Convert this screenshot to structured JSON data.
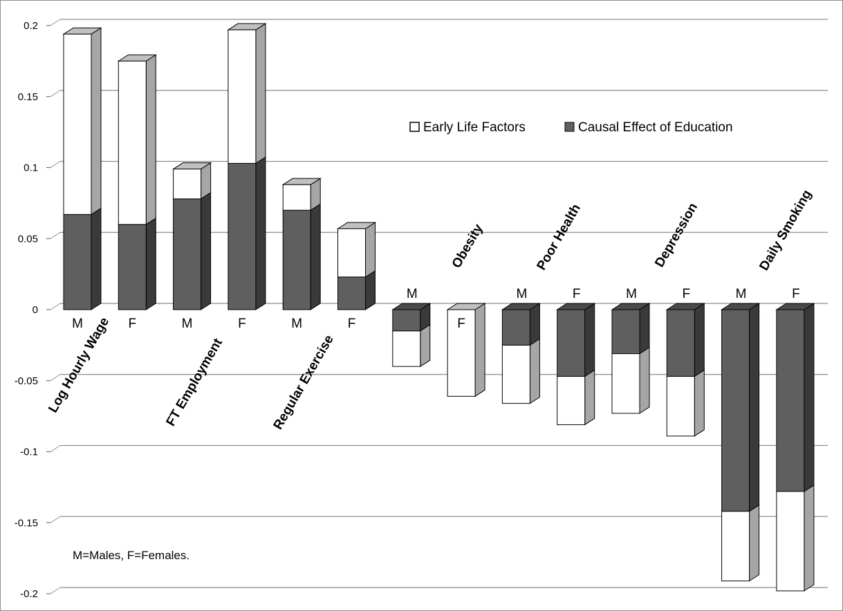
{
  "chart_data": {
    "type": "bar",
    "stacked": true,
    "three_d": true,
    "ylim": [
      -0.2,
      0.2
    ],
    "y_ticks": [
      {
        "value": 0.2,
        "label": "0.2"
      },
      {
        "value": 0.15,
        "label": "0.15"
      },
      {
        "value": 0.1,
        "label": "0.1"
      },
      {
        "value": 0.05,
        "label": "0.05"
      },
      {
        "value": 0,
        "label": "0"
      },
      {
        "value": -0.05,
        "label": "-0.05"
      },
      {
        "value": -0.1,
        "label": "-0.1"
      },
      {
        "value": -0.15,
        "label": "-0.15"
      },
      {
        "value": -0.2,
        "label": "-0.2"
      }
    ],
    "grid": true,
    "legend_position": "top-right",
    "series": [
      {
        "name": "Early Life Factors",
        "color": "#ffffff",
        "values": [
          0.127,
          0.115,
          0.021,
          0.094,
          0.018,
          0.034,
          -0.025,
          -0.061,
          -0.041,
          -0.034,
          -0.042,
          -0.042,
          -0.049,
          -0.07
        ]
      },
      {
        "name": "Causal Effect of Education",
        "color": "#5f5f5f",
        "values": [
          0.067,
          0.06,
          0.078,
          0.103,
          0.07,
          0.023,
          -0.015,
          0,
          -0.025,
          -0.047,
          -0.031,
          -0.047,
          -0.142,
          -0.128
        ]
      }
    ],
    "categories": [
      "M",
      "F",
      "M",
      "F",
      "M",
      "F",
      "M",
      "F",
      "M",
      "F",
      "M",
      "F",
      "M",
      "F"
    ],
    "groups": [
      {
        "name": "Log Hourly Wage"
      },
      {
        "name": "FT Employment"
      },
      {
        "name": "Regular Exercise"
      },
      {
        "name": "Obesity"
      },
      {
        "name": "Poor Health"
      },
      {
        "name": "Depression"
      },
      {
        "name": "Daily Smoking"
      }
    ],
    "annotation": "M=Males, F=Females."
  },
  "colors": {
    "early_life_front": "#ffffff",
    "early_life_side": "#a6a6a6",
    "early_life_top": "#c0c0c0",
    "education_front": "#5f5f5f",
    "education_side": "#3a3a3a",
    "education_top": "#4a4a4a",
    "gridline": "#8c8c8c",
    "outline": "#000000"
  }
}
